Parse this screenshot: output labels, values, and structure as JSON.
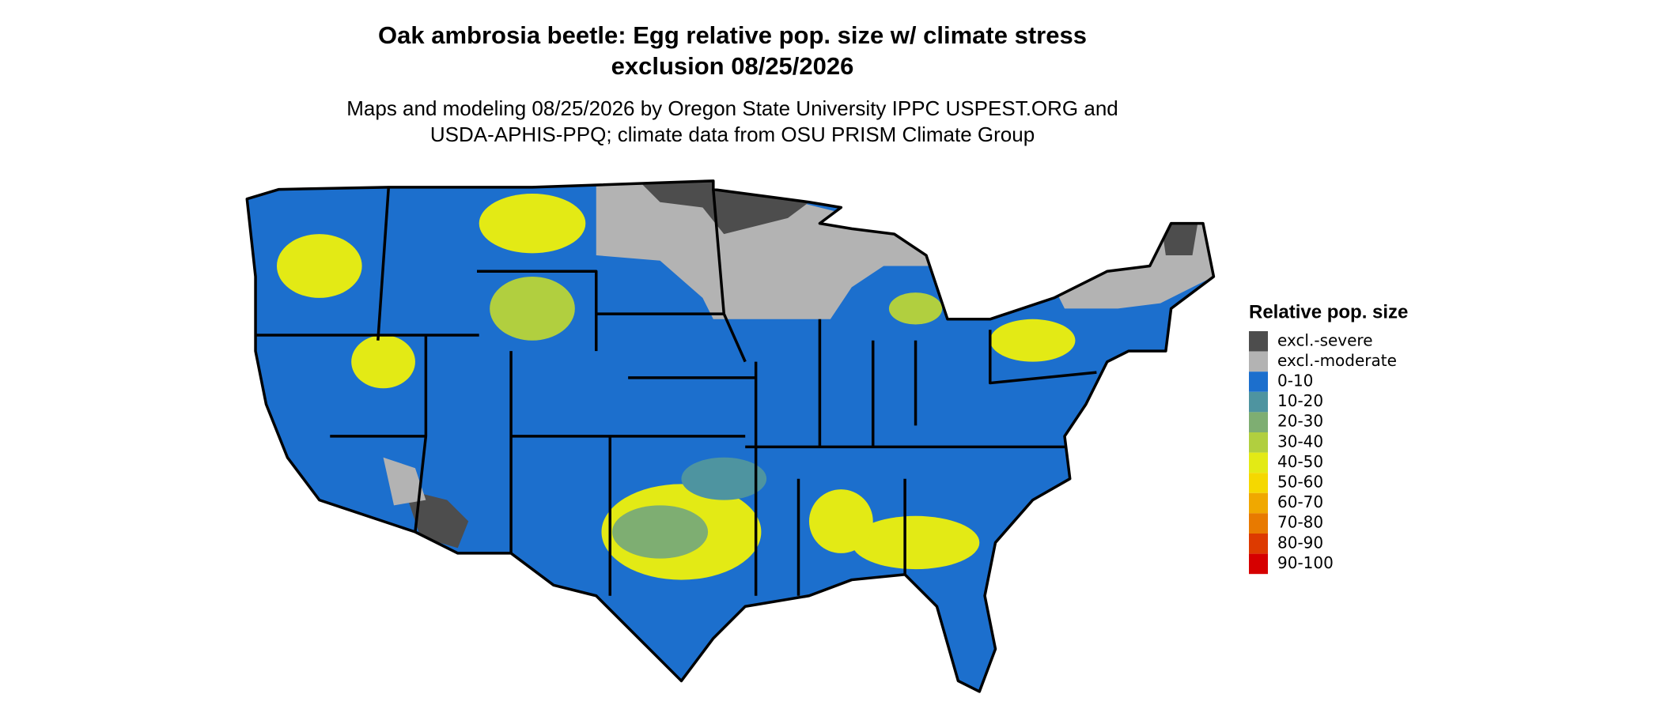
{
  "header": {
    "title_lines": [
      "Oak ambrosia beetle: Egg relative pop. size w/ climate stress",
      "exclusion 08/25/2026"
    ],
    "subtitle_lines": [
      "Maps and modeling 08/25/2026 by Oregon State University IPPC USPEST.ORG and",
      "USDA-APHIS-PPQ; climate data from OSU PRISM Climate Group"
    ]
  },
  "legend": {
    "title": "Relative pop. size",
    "items": [
      {
        "label": "excl.-severe",
        "color": "#4d4d4d"
      },
      {
        "label": "excl.-moderate",
        "color": "#b3b3b3"
      },
      {
        "label": "0-10",
        "color": "#1c6fcd"
      },
      {
        "label": "10-20",
        "color": "#4e94a0"
      },
      {
        "label": "20-30",
        "color": "#7eae72"
      },
      {
        "label": "30-40",
        "color": "#b1cf3f"
      },
      {
        "label": "40-50",
        "color": "#e3ea15"
      },
      {
        "label": "50-60",
        "color": "#f5d800"
      },
      {
        "label": "60-70",
        "color": "#f0a800"
      },
      {
        "label": "70-80",
        "color": "#e87a00"
      },
      {
        "label": "80-90",
        "color": "#dd3a00"
      },
      {
        "label": "90-100",
        "color": "#d60000"
      }
    ]
  }
}
